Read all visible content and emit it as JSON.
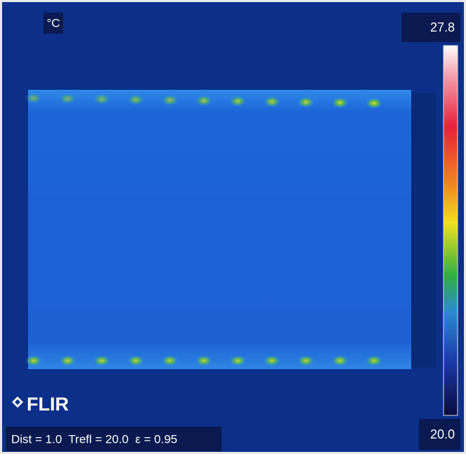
{
  "unit": "°C",
  "scale_max": "27.8",
  "scale_min": "20.0",
  "brand": "FLIR",
  "status": "Dist = 1.0  Trefl = 20.0  ε = 0.95"
}
